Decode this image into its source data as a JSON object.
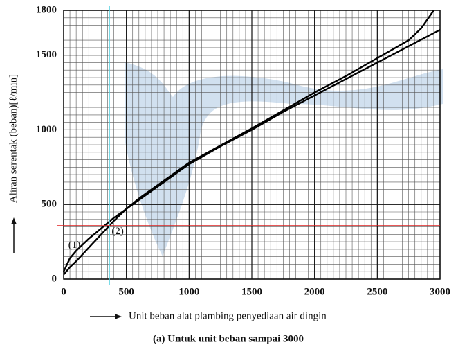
{
  "chart_data": {
    "type": "line",
    "x_label": "Unit beban alat plambing penyediaan air dingin",
    "y_label": "Aliran serentak (beban)[ℓ/min]",
    "caption": "(a)   Untuk unit beban sampai 3000",
    "series": [
      {
        "name": "(1)",
        "color": "#000000",
        "x": [
          0,
          50,
          100,
          200,
          300,
          400,
          500,
          600,
          800,
          1000,
          1250,
          1500,
          1750,
          2000,
          2250,
          2500,
          2750,
          3000
        ],
        "values": [
          50,
          140,
          190,
          270,
          340,
          410,
          470,
          530,
          650,
          770,
          890,
          1000,
          1120,
          1230,
          1340,
          1450,
          1560,
          1670
        ]
      },
      {
        "name": "(2)",
        "color": "#000000",
        "x": [
          0,
          50,
          100,
          200,
          300,
          400,
          500,
          600,
          800,
          1000,
          1250,
          1500,
          1750,
          2000,
          2250,
          2500,
          2750,
          2850,
          2950
        ],
        "values": [
          30,
          80,
          120,
          210,
          300,
          390,
          470,
          540,
          660,
          780,
          895,
          1010,
          1130,
          1250,
          1360,
          1480,
          1600,
          1680,
          1800
        ]
      }
    ],
    "reference_x": 364,
    "reference_x_color": "#4fd0e0",
    "reference_y": 357,
    "reference_y_color": "#e02020",
    "xlim": [
      0,
      3000
    ],
    "xticks": [
      0,
      500,
      1000,
      1500,
      2000,
      2500,
      3000
    ],
    "ylim": [
      0,
      1800
    ],
    "yticks": [
      0,
      500,
      1000,
      1500,
      1800
    ],
    "grid": true
  }
}
